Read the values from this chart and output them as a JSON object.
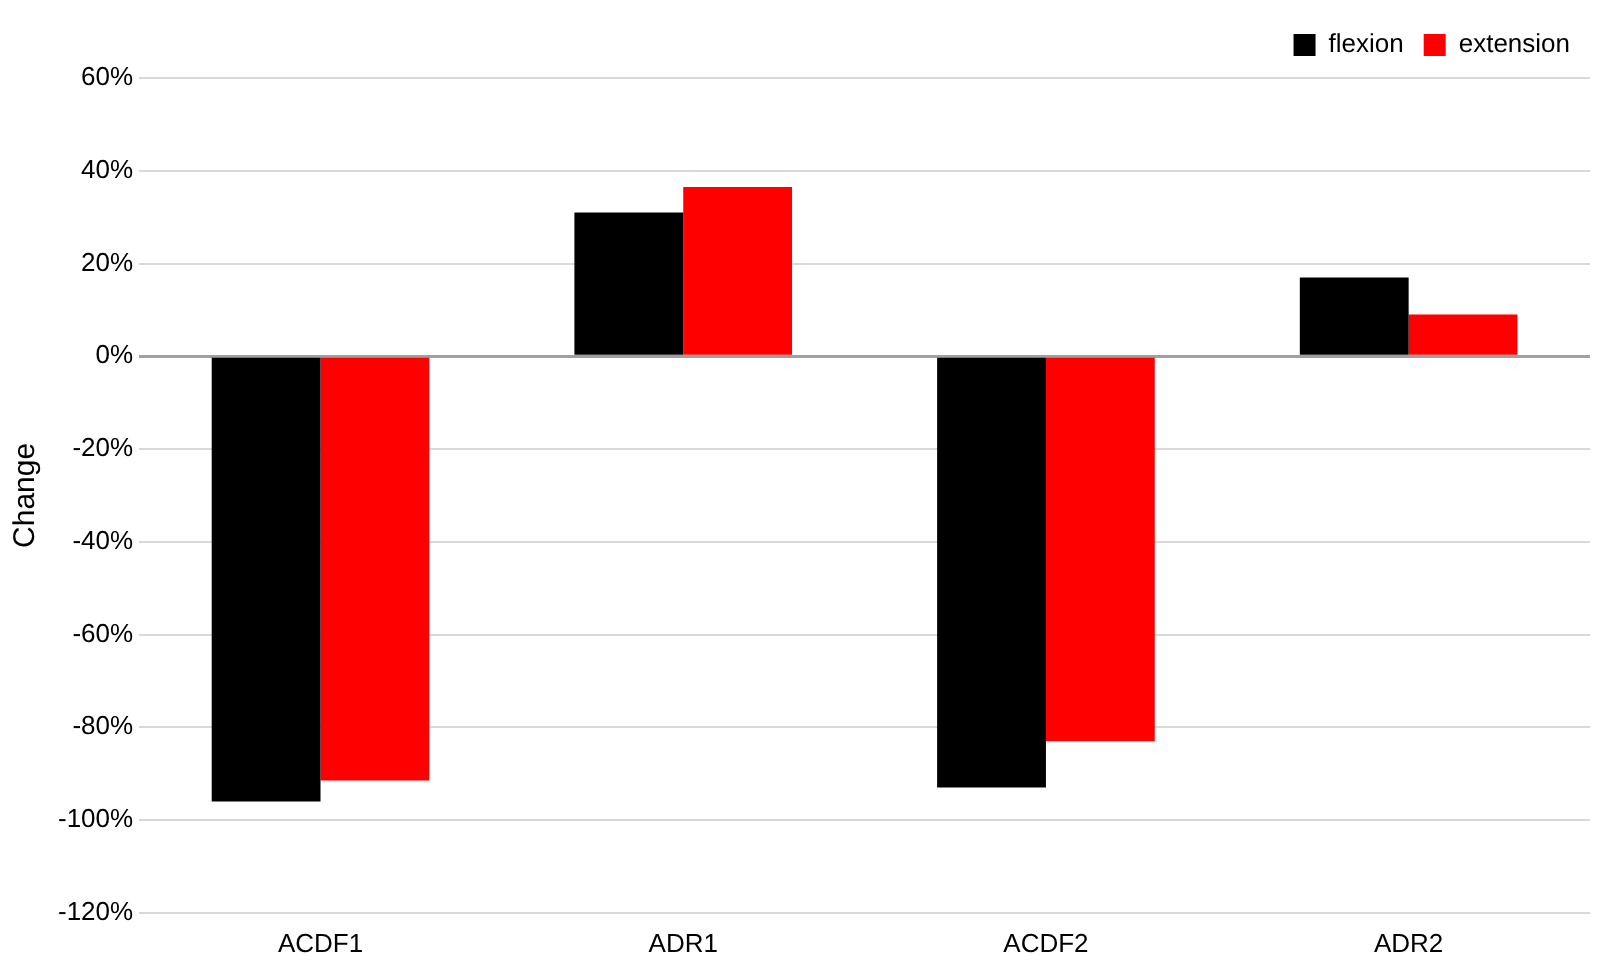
{
  "chart_data": {
    "type": "bar",
    "ylabel": "Change",
    "categories": [
      "ACDF1",
      "ADR1",
      "ACDF2",
      "ADR2"
    ],
    "series": [
      {
        "name": "flexion",
        "color": "#000000",
        "values": [
          -96,
          31,
          -93,
          17
        ]
      },
      {
        "name": "extension",
        "color": "#ff0000",
        "values": [
          -91.5,
          36.5,
          -83,
          9
        ]
      }
    ],
    "ylim": [
      -120,
      60
    ],
    "yticks": [
      {
        "value": -120,
        "label": "-120%"
      },
      {
        "value": -100,
        "label": "-100%"
      },
      {
        "value": -80,
        "label": "-80%"
      },
      {
        "value": -60,
        "label": "-60%"
      },
      {
        "value": -40,
        "label": "-40%"
      },
      {
        "value": -20,
        "label": "-20%"
      },
      {
        "value": 0,
        "label": "0%"
      },
      {
        "value": 20,
        "label": "20%"
      },
      {
        "value": 40,
        "label": "40%"
      },
      {
        "value": 60,
        "label": "60%"
      }
    ],
    "grid": "y",
    "legend": "top right"
  }
}
